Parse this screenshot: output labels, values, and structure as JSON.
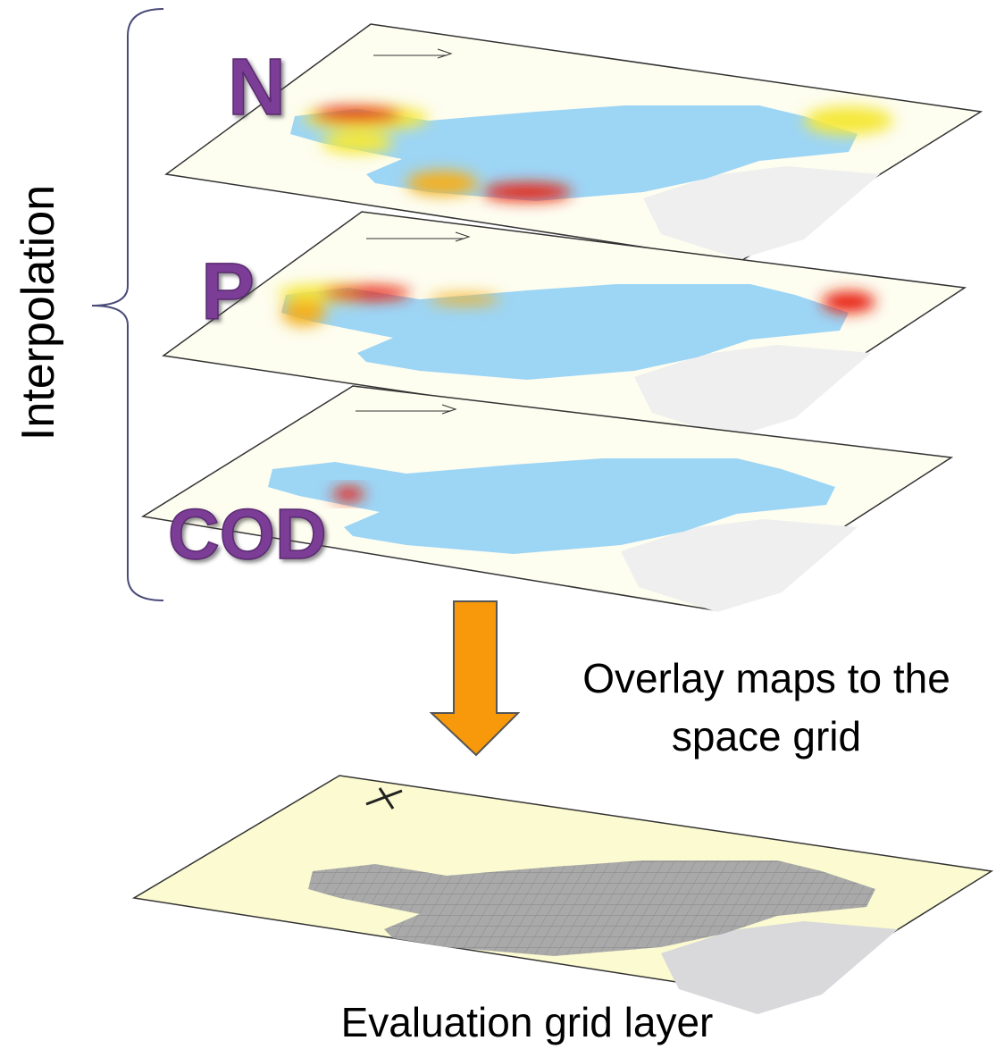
{
  "bracket_label": "Interpolation",
  "layers": [
    {
      "label": "N"
    },
    {
      "label": "P"
    },
    {
      "label": "COD"
    }
  ],
  "arrow_label": [
    "Overlay maps to the",
    "space grid"
  ],
  "result_label": "Evaluation grid layer"
}
